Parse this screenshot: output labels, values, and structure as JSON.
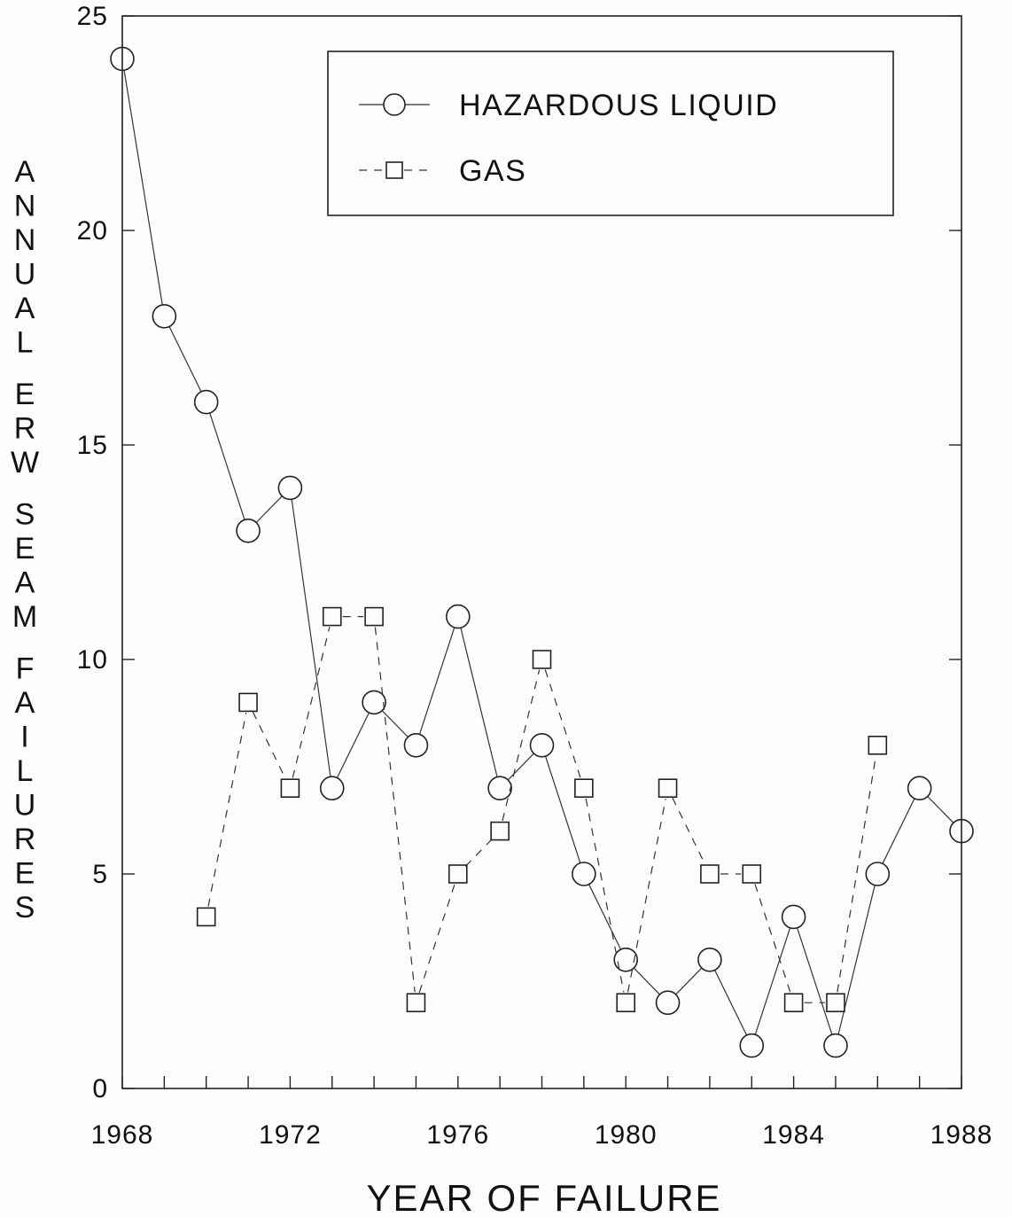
{
  "chart_data": {
    "type": "line",
    "xlabel": "YEAR OF FAILURE",
    "ylabel": "ANNUAL ERW SEAM FAILURES",
    "xlim": [
      1968,
      1988
    ],
    "ylim": [
      0,
      25
    ],
    "x_ticks": [
      1968,
      1972,
      1976,
      1980,
      1984,
      1988
    ],
    "y_ticks": [
      0,
      5,
      10,
      15,
      20,
      25
    ],
    "grid": false,
    "legend_position": "top",
    "series": [
      {
        "name": "HAZARDOUS LIQUID",
        "marker": "circle",
        "line_style": "solid",
        "x": [
          1968,
          1969,
          1970,
          1971,
          1972,
          1973,
          1974,
          1975,
          1976,
          1977,
          1978,
          1979,
          1980,
          1981,
          1982,
          1983,
          1984,
          1985,
          1986,
          1987,
          1988
        ],
        "values": [
          24,
          18,
          16,
          13,
          14,
          7,
          9,
          8,
          11,
          7,
          8,
          5,
          3,
          2,
          3,
          1,
          4,
          1,
          5,
          7,
          6
        ]
      },
      {
        "name": "GAS",
        "marker": "square",
        "line_style": "dashed",
        "x": [
          1970,
          1971,
          1972,
          1973,
          1974,
          1975,
          1976,
          1977,
          1978,
          1979,
          1980,
          1981,
          1982,
          1983,
          1984,
          1985,
          1986
        ],
        "values": [
          4,
          9,
          7,
          11,
          11,
          2,
          5,
          6,
          10,
          7,
          2,
          7,
          5,
          5,
          2,
          2,
          8
        ]
      }
    ]
  }
}
